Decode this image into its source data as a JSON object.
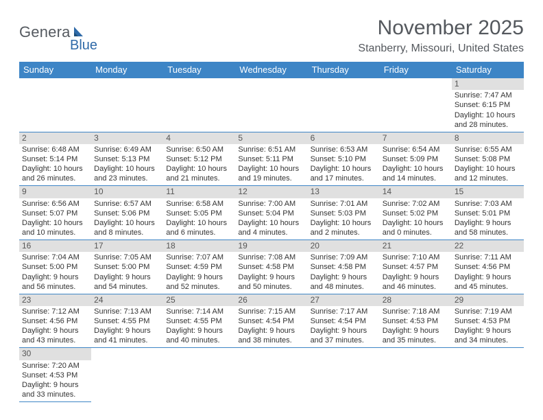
{
  "logo": {
    "text1": "Genera",
    "text2": "Blue"
  },
  "title": "November 2025",
  "location": "Stanberry, Missouri, United States",
  "colors": {
    "header_bg": "#3d85c6",
    "header_fg": "#ffffff",
    "daynum_bg": "#e0e0e0",
    "border": "#3d85c6",
    "title_color": "#54585d",
    "logo_blue": "#2f6aa8"
  },
  "daysOfWeek": [
    "Sunday",
    "Monday",
    "Tuesday",
    "Wednesday",
    "Thursday",
    "Friday",
    "Saturday"
  ],
  "weeks": [
    [
      null,
      null,
      null,
      null,
      null,
      null,
      {
        "n": "1",
        "sr": "Sunrise: 7:47 AM",
        "ss": "Sunset: 6:15 PM",
        "dl": "Daylight: 10 hours and 28 minutes."
      }
    ],
    [
      {
        "n": "2",
        "sr": "Sunrise: 6:48 AM",
        "ss": "Sunset: 5:14 PM",
        "dl": "Daylight: 10 hours and 26 minutes."
      },
      {
        "n": "3",
        "sr": "Sunrise: 6:49 AM",
        "ss": "Sunset: 5:13 PM",
        "dl": "Daylight: 10 hours and 23 minutes."
      },
      {
        "n": "4",
        "sr": "Sunrise: 6:50 AM",
        "ss": "Sunset: 5:12 PM",
        "dl": "Daylight: 10 hours and 21 minutes."
      },
      {
        "n": "5",
        "sr": "Sunrise: 6:51 AM",
        "ss": "Sunset: 5:11 PM",
        "dl": "Daylight: 10 hours and 19 minutes."
      },
      {
        "n": "6",
        "sr": "Sunrise: 6:53 AM",
        "ss": "Sunset: 5:10 PM",
        "dl": "Daylight: 10 hours and 17 minutes."
      },
      {
        "n": "7",
        "sr": "Sunrise: 6:54 AM",
        "ss": "Sunset: 5:09 PM",
        "dl": "Daylight: 10 hours and 14 minutes."
      },
      {
        "n": "8",
        "sr": "Sunrise: 6:55 AM",
        "ss": "Sunset: 5:08 PM",
        "dl": "Daylight: 10 hours and 12 minutes."
      }
    ],
    [
      {
        "n": "9",
        "sr": "Sunrise: 6:56 AM",
        "ss": "Sunset: 5:07 PM",
        "dl": "Daylight: 10 hours and 10 minutes."
      },
      {
        "n": "10",
        "sr": "Sunrise: 6:57 AM",
        "ss": "Sunset: 5:06 PM",
        "dl": "Daylight: 10 hours and 8 minutes."
      },
      {
        "n": "11",
        "sr": "Sunrise: 6:58 AM",
        "ss": "Sunset: 5:05 PM",
        "dl": "Daylight: 10 hours and 6 minutes."
      },
      {
        "n": "12",
        "sr": "Sunrise: 7:00 AM",
        "ss": "Sunset: 5:04 PM",
        "dl": "Daylight: 10 hours and 4 minutes."
      },
      {
        "n": "13",
        "sr": "Sunrise: 7:01 AM",
        "ss": "Sunset: 5:03 PM",
        "dl": "Daylight: 10 hours and 2 minutes."
      },
      {
        "n": "14",
        "sr": "Sunrise: 7:02 AM",
        "ss": "Sunset: 5:02 PM",
        "dl": "Daylight: 10 hours and 0 minutes."
      },
      {
        "n": "15",
        "sr": "Sunrise: 7:03 AM",
        "ss": "Sunset: 5:01 PM",
        "dl": "Daylight: 9 hours and 58 minutes."
      }
    ],
    [
      {
        "n": "16",
        "sr": "Sunrise: 7:04 AM",
        "ss": "Sunset: 5:00 PM",
        "dl": "Daylight: 9 hours and 56 minutes."
      },
      {
        "n": "17",
        "sr": "Sunrise: 7:05 AM",
        "ss": "Sunset: 5:00 PM",
        "dl": "Daylight: 9 hours and 54 minutes."
      },
      {
        "n": "18",
        "sr": "Sunrise: 7:07 AM",
        "ss": "Sunset: 4:59 PM",
        "dl": "Daylight: 9 hours and 52 minutes."
      },
      {
        "n": "19",
        "sr": "Sunrise: 7:08 AM",
        "ss": "Sunset: 4:58 PM",
        "dl": "Daylight: 9 hours and 50 minutes."
      },
      {
        "n": "20",
        "sr": "Sunrise: 7:09 AM",
        "ss": "Sunset: 4:58 PM",
        "dl": "Daylight: 9 hours and 48 minutes."
      },
      {
        "n": "21",
        "sr": "Sunrise: 7:10 AM",
        "ss": "Sunset: 4:57 PM",
        "dl": "Daylight: 9 hours and 46 minutes."
      },
      {
        "n": "22",
        "sr": "Sunrise: 7:11 AM",
        "ss": "Sunset: 4:56 PM",
        "dl": "Daylight: 9 hours and 45 minutes."
      }
    ],
    [
      {
        "n": "23",
        "sr": "Sunrise: 7:12 AM",
        "ss": "Sunset: 4:56 PM",
        "dl": "Daylight: 9 hours and 43 minutes."
      },
      {
        "n": "24",
        "sr": "Sunrise: 7:13 AM",
        "ss": "Sunset: 4:55 PM",
        "dl": "Daylight: 9 hours and 41 minutes."
      },
      {
        "n": "25",
        "sr": "Sunrise: 7:14 AM",
        "ss": "Sunset: 4:55 PM",
        "dl": "Daylight: 9 hours and 40 minutes."
      },
      {
        "n": "26",
        "sr": "Sunrise: 7:15 AM",
        "ss": "Sunset: 4:54 PM",
        "dl": "Daylight: 9 hours and 38 minutes."
      },
      {
        "n": "27",
        "sr": "Sunrise: 7:17 AM",
        "ss": "Sunset: 4:54 PM",
        "dl": "Daylight: 9 hours and 37 minutes."
      },
      {
        "n": "28",
        "sr": "Sunrise: 7:18 AM",
        "ss": "Sunset: 4:53 PM",
        "dl": "Daylight: 9 hours and 35 minutes."
      },
      {
        "n": "29",
        "sr": "Sunrise: 7:19 AM",
        "ss": "Sunset: 4:53 PM",
        "dl": "Daylight: 9 hours and 34 minutes."
      }
    ],
    [
      {
        "n": "30",
        "sr": "Sunrise: 7:20 AM",
        "ss": "Sunset: 4:53 PM",
        "dl": "Daylight: 9 hours and 33 minutes."
      },
      null,
      null,
      null,
      null,
      null,
      null
    ]
  ]
}
